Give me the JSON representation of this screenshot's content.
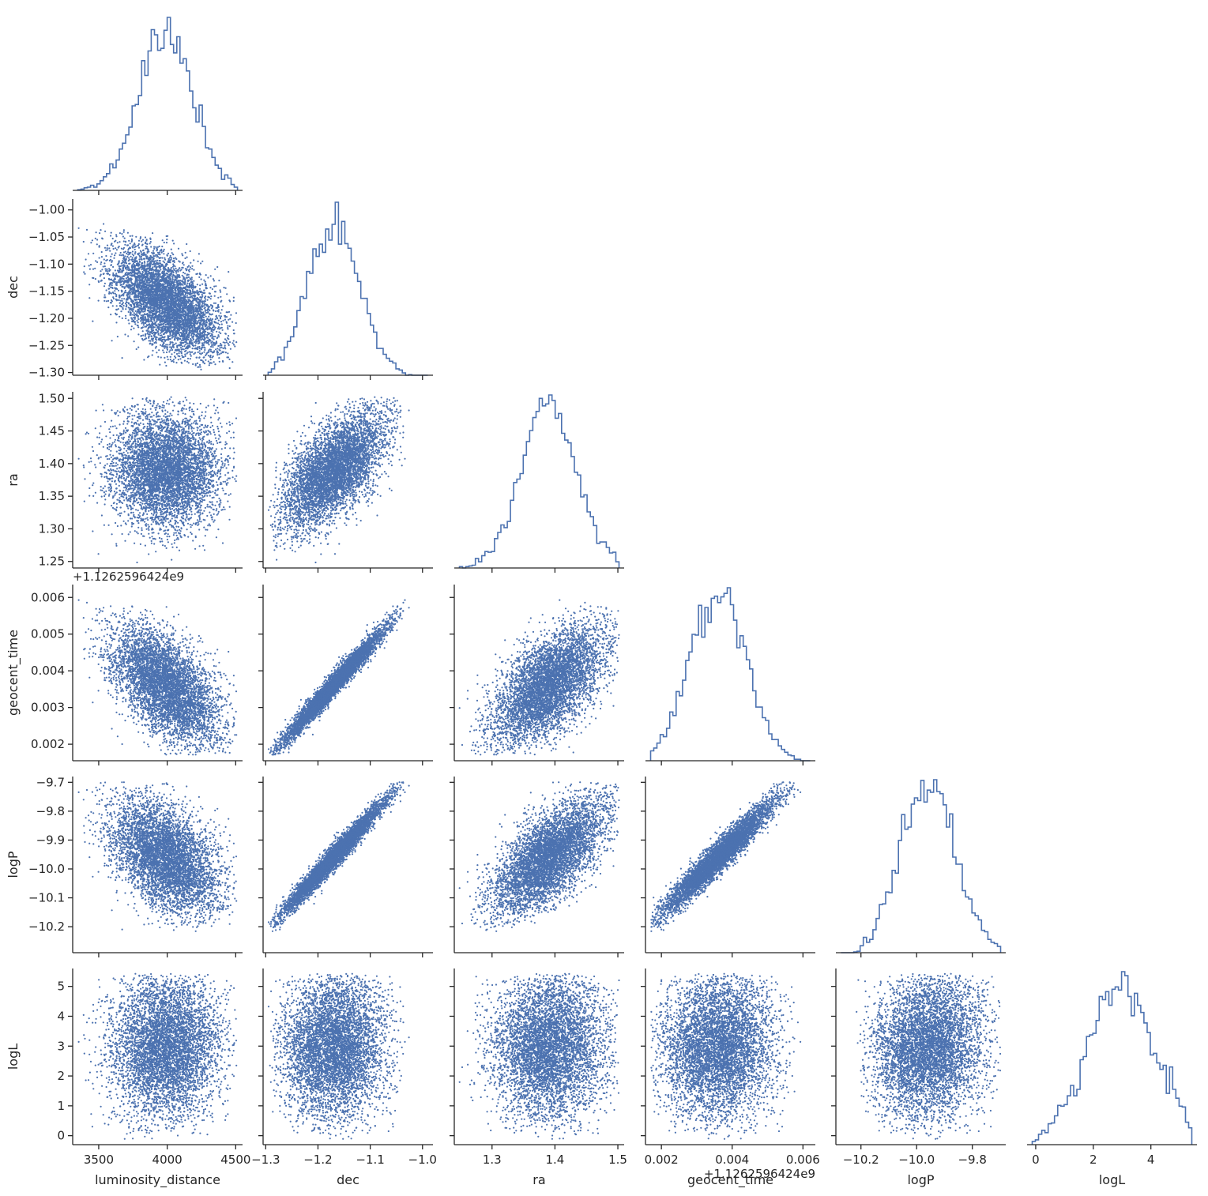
{
  "chart_data": {
    "type": "corner",
    "description_words": "pairwise scatter / marginal histogram corner plot",
    "color": "#4c72b0",
    "variables": [
      {
        "name": "luminosity_distance",
        "range": [
          3310,
          4550
        ],
        "ticks": [
          3500,
          4000,
          4500
        ],
        "tick_labels": [
          "3500",
          "4000",
          "4500"
        ],
        "mean": 3990,
        "sd": 200,
        "offset_label": ""
      },
      {
        "name": "dec",
        "range": [
          -1.305,
          -0.98
        ],
        "ticks": [
          -1.3,
          -1.2,
          -1.1,
          -1.0
        ],
        "tick_labels": [
          "−1.3",
          "−1.2",
          "−1.1",
          "−1.0"
        ],
        "yticks": [
          -1.3,
          -1.25,
          -1.2,
          -1.15,
          -1.1,
          -1.05,
          -1.0
        ],
        "ytick_labels": [
          "−1.30",
          "−1.25",
          "−1.20",
          "−1.15",
          "−1.10",
          "−1.05",
          "−1.00"
        ],
        "mean": -1.17,
        "sd": 0.05,
        "offset_label": ""
      },
      {
        "name": "ra",
        "range": [
          1.24,
          1.51
        ],
        "ticks": [
          1.3,
          1.4,
          1.5
        ],
        "tick_labels": [
          "1.3",
          "1.4",
          "1.5"
        ],
        "yticks": [
          1.25,
          1.3,
          1.35,
          1.4,
          1.45,
          1.5
        ],
        "ytick_labels": [
          "1.25",
          "1.30",
          "1.35",
          "1.40",
          "1.45",
          "1.50"
        ],
        "mean": 1.39,
        "sd": 0.045,
        "offset_label": ""
      },
      {
        "name": "geocent_time",
        "range": [
          0.00155,
          0.00635
        ],
        "ticks": [
          0.002,
          0.004,
          0.006
        ],
        "tick_labels": [
          "0.002",
          "0.004",
          "0.006"
        ],
        "yticks": [
          0.002,
          0.003,
          0.004,
          0.005,
          0.006
        ],
        "ytick_labels": [
          "0.002",
          "0.003",
          "0.004",
          "0.005",
          "0.006"
        ],
        "mean": 0.0036,
        "sd": 0.0008,
        "offset_label": "+1.1262596424e9"
      },
      {
        "name": "logP",
        "range": [
          -10.29,
          -9.68
        ],
        "ticks": [
          -10.2,
          -10.0,
          -9.8
        ],
        "tick_labels": [
          "−10.2",
          "−10.0",
          "−9.8"
        ],
        "yticks": [
          -10.2,
          -10.1,
          -10.0,
          -9.9,
          -9.8,
          -9.7
        ],
        "ytick_labels": [
          "−10.2",
          "−10.1",
          "−10.0",
          "−9.9",
          "−9.8",
          "−9.7"
        ],
        "mean": -9.96,
        "sd": 0.1,
        "offset_label": ""
      },
      {
        "name": "logL",
        "range": [
          -0.3,
          5.6
        ],
        "ticks": [
          0,
          2,
          4
        ],
        "tick_labels": [
          "0",
          "2",
          "4"
        ],
        "yticks": [
          0,
          1,
          2,
          3,
          4,
          5
        ],
        "ytick_labels": [
          "0",
          "1",
          "2",
          "3",
          "4",
          "5"
        ],
        "mean": 3.0,
        "sd": 1.2,
        "offset_label": ""
      }
    ],
    "correlations": [
      [
        "luminosity_distance",
        "dec",
        -0.55
      ],
      [
        "luminosity_distance",
        "ra",
        -0.05
      ],
      [
        "dec",
        "ra",
        0.62
      ],
      [
        "luminosity_distance",
        "geocent_time",
        -0.55
      ],
      [
        "dec",
        "geocent_time",
        0.98
      ],
      [
        "ra",
        "geocent_time",
        0.6
      ],
      [
        "luminosity_distance",
        "logP",
        -0.45
      ],
      [
        "dec",
        "logP",
        0.98
      ],
      [
        "ra",
        "logP",
        0.66
      ],
      [
        "geocent_time",
        "logP",
        0.96
      ],
      [
        "luminosity_distance",
        "logL",
        0.05
      ],
      [
        "dec",
        "logL",
        0.05
      ],
      [
        "ra",
        "logL",
        0.05
      ],
      [
        "geocent_time",
        "logL",
        0.05
      ],
      [
        "logP",
        "logL",
        0.1
      ]
    ],
    "histogram_bins": 50,
    "grid": false,
    "legend": "none"
  }
}
